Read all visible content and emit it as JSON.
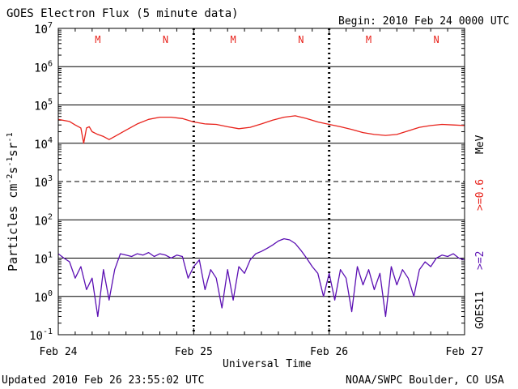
{
  "chart_data": {
    "type": "line",
    "title": "GOES Electron Flux (5 minute data)",
    "begin_label": "Begin: 2010 Feb 24 0000 UTC",
    "xlabel": "Universal Time",
    "ylabel": "Particles cm⁻²s⁻¹sr⁻¹",
    "ylabel_base": "Particles cm",
    "ylabel_exp1": "-2",
    "ylabel_mid1": "s",
    "ylabel_exp2": "-1",
    "ylabel_mid2": "sr",
    "ylabel_exp3": "-1",
    "y_scale": "log",
    "ylim": [
      0.1,
      10000000
    ],
    "y_tick_exponents": [
      "7",
      "6",
      "5",
      "4",
      "3",
      "2",
      "1",
      "0",
      "-1"
    ],
    "dashed_line_at": 1000,
    "xlim": [
      "2010-02-24 00:00",
      "2010-02-27 00:00"
    ],
    "x_tick_labels": [
      "Feb 24",
      "Feb 25",
      "Feb 26",
      "Feb 27"
    ],
    "day_boundaries": [
      "2010-02-25 00:00",
      "2010-02-26 00:00"
    ],
    "markers": [
      {
        "label": "M",
        "time": "2010-02-24 07:00"
      },
      {
        "label": "N",
        "time": "2010-02-24 19:00"
      },
      {
        "label": "M",
        "time": "2010-02-25 07:00"
      },
      {
        "label": "N",
        "time": "2010-02-25 19:00"
      },
      {
        "label": "M",
        "time": "2010-02-26 07:00"
      },
      {
        "label": "N",
        "time": "2010-02-26 19:00"
      }
    ],
    "series": [
      {
        "name": ">=0.6 MeV",
        "color": "#e8221b",
        "x_hours": [
          0,
          2,
          3,
          4,
          4.5,
          5,
          5.5,
          6,
          7,
          8,
          9,
          10,
          12,
          14,
          16,
          18,
          20,
          22,
          24,
          26,
          28,
          30,
          32,
          34,
          36,
          38,
          40,
          42,
          44,
          46,
          48,
          50,
          52,
          54,
          56,
          58,
          60,
          62,
          64,
          66,
          68,
          70,
          72
        ],
        "values": [
          42000,
          37000,
          30000,
          25000,
          10000,
          25000,
          27000,
          20000,
          17000,
          15000,
          12500,
          15000,
          22000,
          32000,
          42000,
          48000,
          48000,
          44000,
          36000,
          32000,
          31000,
          27000,
          24000,
          26000,
          32000,
          40000,
          48000,
          52000,
          44000,
          36000,
          31000,
          27000,
          23000,
          19000,
          17000,
          16000,
          17000,
          21000,
          26000,
          29000,
          31000,
          30000,
          29000
        ]
      },
      {
        "name": ">=2 MeV",
        "color": "#5b0fb3",
        "x_hours": [
          0,
          1,
          2,
          3,
          4,
          5,
          6,
          7,
          8,
          9,
          10,
          11,
          12,
          13,
          14,
          15,
          16,
          17,
          18,
          19,
          20,
          21,
          22,
          23,
          24,
          25,
          26,
          27,
          28,
          29,
          30,
          31,
          32,
          33,
          34,
          35,
          36,
          37,
          38,
          39,
          40,
          41,
          42,
          43,
          44,
          45,
          46,
          47,
          48,
          49,
          50,
          51,
          52,
          53,
          54,
          55,
          56,
          57,
          58,
          59,
          60,
          61,
          62,
          63,
          64,
          65,
          66,
          67,
          68,
          69,
          70,
          71,
          72
        ],
        "values": [
          13,
          10,
          8,
          3,
          6,
          1.5,
          3,
          0.3,
          5,
          0.8,
          5,
          13,
          12,
          11,
          13,
          12,
          14,
          11,
          13,
          12,
          10,
          12,
          11,
          3,
          6,
          9,
          1.5,
          5,
          3,
          0.5,
          5,
          0.8,
          6,
          4,
          9,
          13,
          15,
          18,
          22,
          28,
          32,
          30,
          24,
          16,
          10,
          6,
          4,
          1,
          4,
          0.8,
          5,
          3,
          0.4,
          6,
          2,
          5,
          1.5,
          4,
          0.3,
          6,
          2,
          5,
          3,
          1,
          5,
          8,
          6,
          10,
          12,
          11,
          13,
          10,
          9
        ]
      }
    ]
  },
  "right_labels": {
    "satellite": "GOES11",
    "energy_2": ">=2",
    "energy_06": ">=0.6",
    "unit": "MeV",
    "color_2": "#5b0fb3",
    "color_06": "#e8221b"
  },
  "footer": {
    "updated": "Updated 2010 Feb 26 23:55:02 UTC",
    "source": "NOAA/SWPC Boulder, CO USA"
  }
}
